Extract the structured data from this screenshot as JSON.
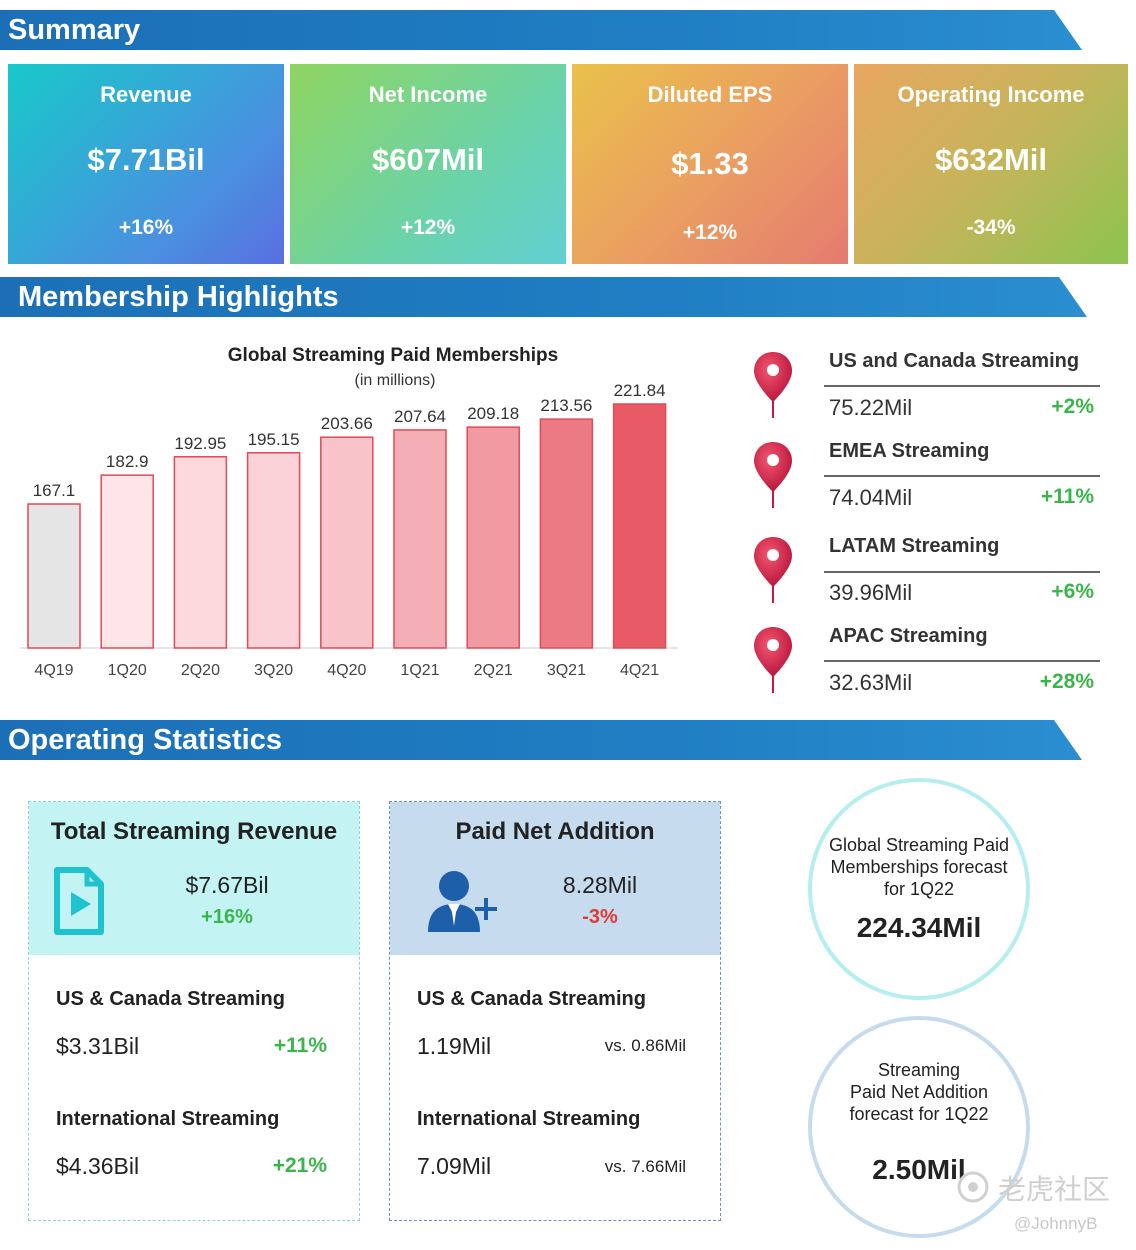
{
  "sections": {
    "summary": "Summary",
    "membership": "Membership Highlights",
    "operating": "Operating Statistics"
  },
  "summary_cards": [
    {
      "title": "Revenue",
      "value": "$7.71Bil",
      "change": "+16%"
    },
    {
      "title": "Net Income",
      "value": "$607Mil",
      "change": "+12%"
    },
    {
      "title": "Diluted EPS",
      "value": "$1.33",
      "change": "+12%"
    },
    {
      "title": "Operating Income",
      "value": "$632Mil",
      "change": "-34%"
    }
  ],
  "chart_data": {
    "type": "bar",
    "title": "Global Streaming Paid Memberships",
    "subtitle": "(in millions)",
    "categories": [
      "4Q19",
      "1Q20",
      "2Q20",
      "3Q20",
      "4Q20",
      "1Q21",
      "2Q21",
      "3Q21",
      "4Q21"
    ],
    "values": [
      167.1,
      182.9,
      192.95,
      195.15,
      203.66,
      207.64,
      209.18,
      213.56,
      221.84
    ],
    "labels": [
      "167.1",
      "182.9",
      "192.95",
      "195.15",
      "203.66",
      "207.64",
      "209.18",
      "213.56",
      "221.84"
    ],
    "colors": [
      "#e5e5e5",
      "#fde5e8",
      "#fbd9dd",
      "#fbd2d7",
      "#f8c3c9",
      "#f4aeb5",
      "#f19aa2",
      "#ec7a84",
      "#e85a66"
    ],
    "stroke": "#e24a55",
    "ylim": [
      0,
      230
    ],
    "grid": false
  },
  "regions": [
    {
      "name": "US and Canada Streaming",
      "value": "75.22Mil",
      "change": "+2%"
    },
    {
      "name": "EMEA Streaming",
      "value": "74.04Mil",
      "change": "+11%"
    },
    {
      "name": "LATAM Streaming",
      "value": "39.96Mil",
      "change": "+6%"
    },
    {
      "name": "APAC Streaming",
      "value": "32.63Mil",
      "change": "+28%"
    }
  ],
  "panels": {
    "revenue": {
      "title": "Total Streaming Revenue",
      "value": "$7.67Bil",
      "change": "+16%",
      "us_name": "US & Canada Streaming",
      "us_value": "$3.31Bil",
      "us_change": "+11%",
      "intl_name": "International Streaming",
      "intl_value": "$4.36Bil",
      "intl_change": "+21%"
    },
    "paid": {
      "title": "Paid Net Addition",
      "value": "8.28Mil",
      "change": "-3%",
      "us_name": "US & Canada Streaming",
      "us_value": "1.19Mil",
      "us_vs": "vs.  0.86Mil",
      "intl_name": "International Streaming",
      "intl_value": "7.09Mil",
      "intl_vs": "vs. 7.66Mil"
    }
  },
  "forecasts": {
    "members": {
      "line1": "Global Streaming Paid",
      "line2": "Memberships forecast",
      "line3": "for 1Q22",
      "value": "224.34Mil"
    },
    "netadd": {
      "line1": "Streaming",
      "line2": "Paid Net Addition",
      "line3": "forecast for 1Q22",
      "value": "2.50Mil"
    }
  },
  "watermark": {
    "text": "老虎社区",
    "handle": "@JohnnyB"
  },
  "colors": {
    "banner": "#1f7ec3",
    "positive": "#3ab54a",
    "negative": "#e53935",
    "pin": "#d6204b"
  },
  "icons": {
    "pin": "map-pin-icon",
    "video": "video-file-icon",
    "user_add": "user-add-icon"
  }
}
